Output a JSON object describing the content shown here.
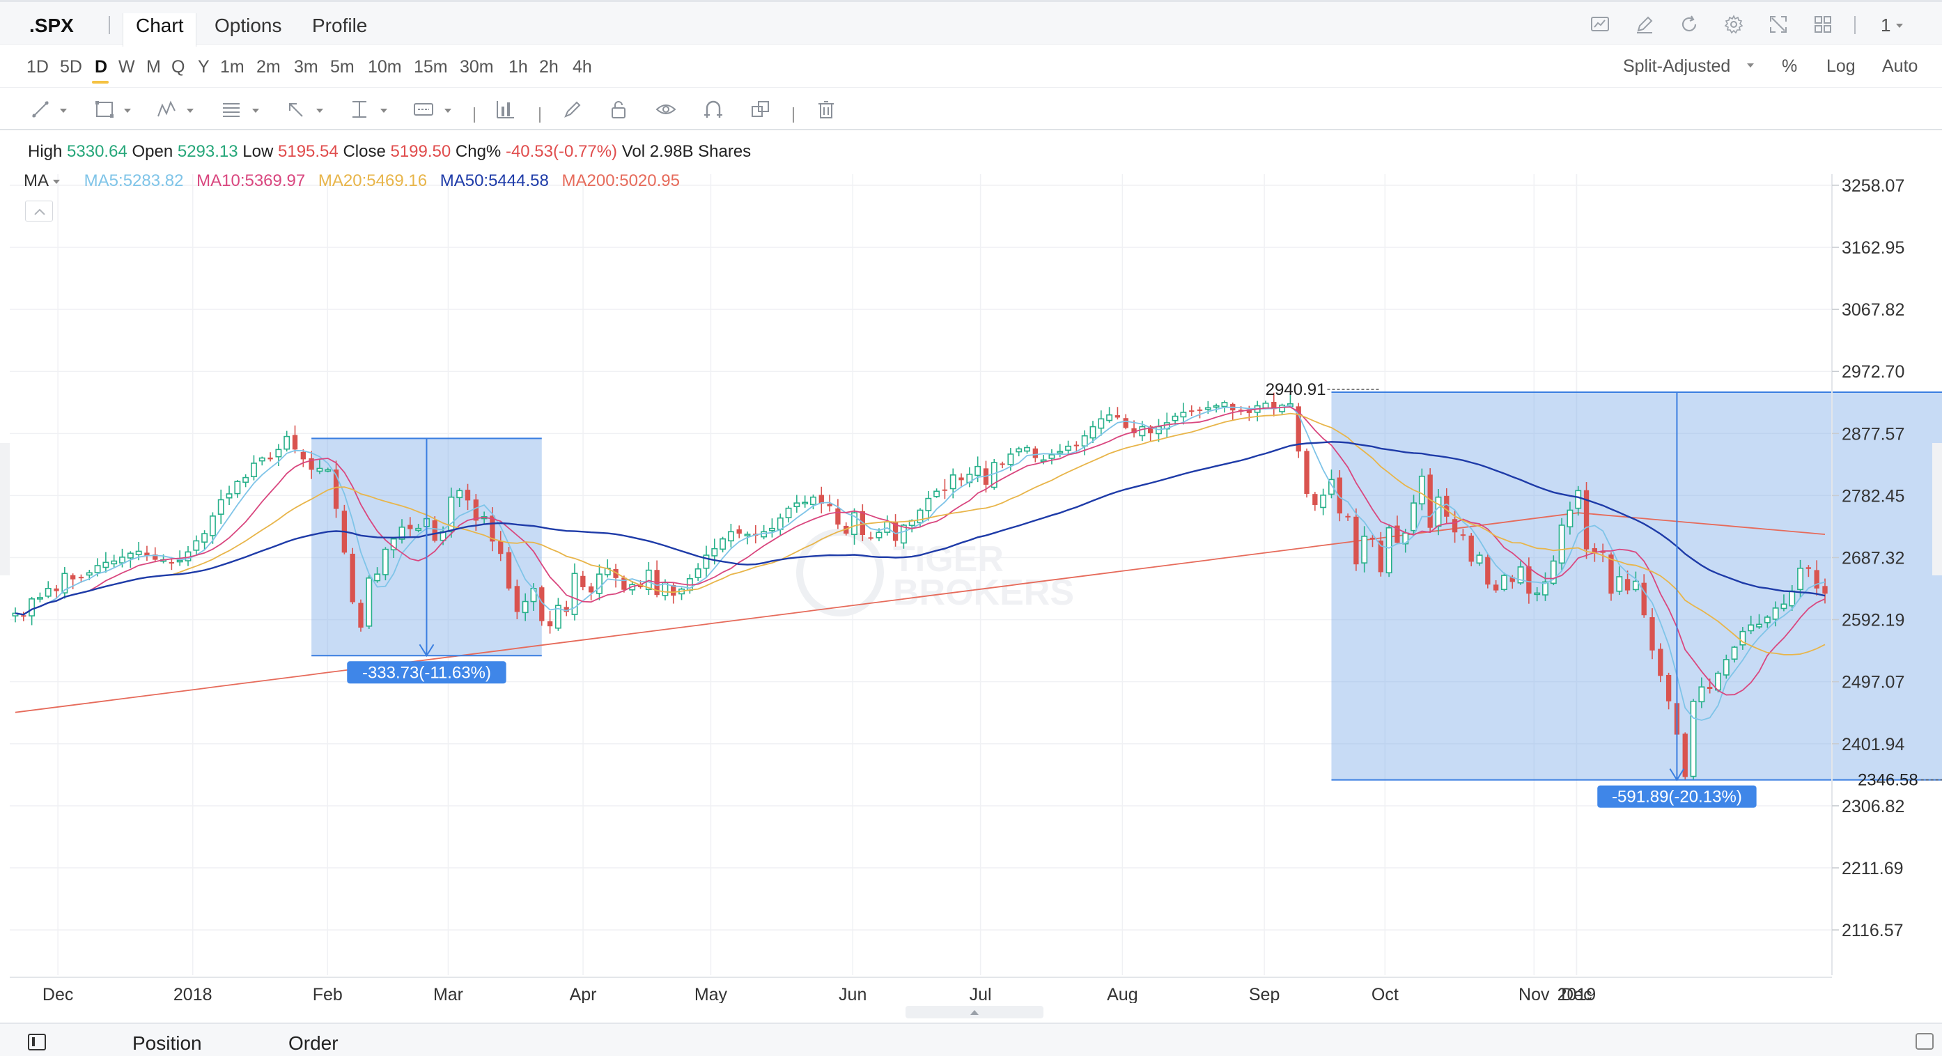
{
  "header": {
    "symbol": ".SPX",
    "tabs": [
      {
        "label": "Chart",
        "active": true
      },
      {
        "label": "Options",
        "active": false
      },
      {
        "label": "Profile",
        "active": false
      }
    ],
    "layout_count": "1"
  },
  "periods": [
    "1D",
    "5D",
    "D",
    "W",
    "M",
    "Q",
    "Y",
    "1m",
    "2m",
    "3m",
    "5m",
    "10m",
    "15m",
    "30m",
    "1h",
    "2h",
    "4h"
  ],
  "active_period": "D",
  "price_options": {
    "adjustment": "Split-Adjusted",
    "percent": "%",
    "log": "Log",
    "auto": "Auto"
  },
  "ohlc": {
    "high_label": "High",
    "high": "5330.64",
    "open_label": "Open",
    "open": "5293.13",
    "low_label": "Low",
    "low": "5195.54",
    "close_label": "Close",
    "close": "5199.50",
    "chg_label": "Chg%",
    "chg": "-40.53(-0.77%)",
    "vol_label": "Vol",
    "vol": "2.98B Shares"
  },
  "ma_legend": {
    "label": "MA",
    "items": [
      {
        "text": "MA5:5283.82",
        "color": "#7fc4e8"
      },
      {
        "text": "MA10:5369.97",
        "color": "#d9477f"
      },
      {
        "text": "MA20:5469.16",
        "color": "#e8b54a"
      },
      {
        "text": "MA50:5444.58",
        "color": "#1e3ba8"
      },
      {
        "text": "MA200:5020.95",
        "color": "#e66b5b"
      }
    ]
  },
  "chart_data": {
    "type": "candlestick",
    "y_ticks": [
      "3258.07",
      "3162.95",
      "3067.82",
      "2972.70",
      "2877.57",
      "2782.45",
      "2687.32",
      "2592.19",
      "2497.07",
      "2401.94",
      "2306.82",
      "2211.69",
      "2116.57"
    ],
    "ylim": [
      2116.57,
      3258.07
    ],
    "x_ticks": [
      "Dec",
      "2018",
      "Feb",
      "Mar",
      "Apr",
      "May",
      "Jun",
      "Jul",
      "Aug",
      "Sep",
      "Oct",
      "Nov",
      "Dec",
      "2019"
    ],
    "grid": true,
    "watermark": "TIGER BROKERS",
    "colors": {
      "up": "#27b08a",
      "down": "#d9534f"
    },
    "closes": [
      2602,
      2598,
      2624,
      2626,
      2640,
      2636,
      2663,
      2654,
      2657,
      2664,
      2675,
      2680,
      2682,
      2688,
      2694,
      2697,
      2690,
      2684,
      2684,
      2680,
      2683,
      2696,
      2713,
      2724,
      2751,
      2776,
      2785,
      2804,
      2810,
      2832,
      2840,
      2838,
      2853,
      2873,
      2853,
      2838,
      2822,
      2824,
      2822,
      2762,
      2695,
      2619,
      2580,
      2656,
      2662,
      2700,
      2716,
      2734,
      2731,
      2732,
      2747,
      2713,
      2727,
      2780,
      2790,
      2775,
      2744,
      2750,
      2712,
      2693,
      2640,
      2604,
      2620,
      2640,
      2590,
      2582,
      2614,
      2604,
      2663,
      2642,
      2634,
      2662,
      2671,
      2656,
      2638,
      2646,
      2642,
      2668,
      2630,
      2649,
      2629,
      2639,
      2655,
      2670,
      2691,
      2701,
      2716,
      2727,
      2724,
      2723,
      2721,
      2727,
      2732,
      2748,
      2763,
      2771,
      2772,
      2780,
      2770,
      2766,
      2738,
      2724,
      2756,
      2722,
      2718,
      2726,
      2742,
      2713,
      2737,
      2744,
      2760,
      2778,
      2789,
      2791,
      2814,
      2806,
      2815,
      2827,
      2799,
      2833,
      2830,
      2846,
      2854,
      2856,
      2840,
      2837,
      2845,
      2850,
      2858,
      2859,
      2874,
      2888,
      2900,
      2906,
      2902,
      2886,
      2878,
      2888,
      2878,
      2888,
      2894,
      2904,
      2910,
      2912,
      2914,
      2917,
      2920,
      2925,
      2913,
      2911,
      2909,
      2920,
      2924,
      2915,
      2921,
      2923,
      2850,
      2785,
      2768,
      2783,
      2807,
      2755,
      2750,
      2677,
      2720,
      2715,
      2665,
      2733,
      2710,
      2725,
      2771,
      2812,
      2733,
      2780,
      2750,
      2726,
      2722,
      2681,
      2691,
      2646,
      2637,
      2660,
      2650,
      2673,
      2632,
      2633,
      2650,
      2682,
      2737,
      2760,
      2790,
      2700,
      2695,
      2696,
      2632,
      2658,
      2637,
      2651,
      2599,
      2545,
      2506,
      2467,
      2416,
      2351,
      2467,
      2489,
      2486,
      2510,
      2531,
      2550,
      2574,
      2584,
      2585,
      2596,
      2610,
      2616,
      2636,
      2671,
      2670,
      2640,
      2632
    ]
  },
  "annotations": {
    "box1_label": "-333.73(-11.63%)",
    "box2_label": "-591.89(-20.13%)",
    "high_marker": "2940.91",
    "low_marker": "2346.58"
  },
  "bottom": {
    "tabs": [
      "Position",
      "Order"
    ]
  }
}
